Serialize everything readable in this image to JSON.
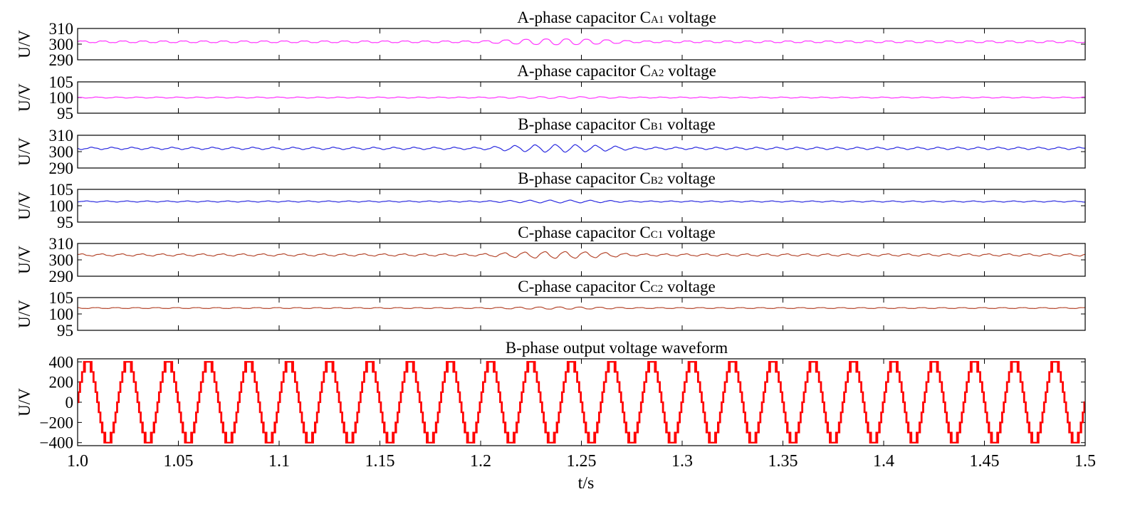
{
  "chart_data": {
    "type": "line",
    "x_label": "t/s",
    "xlim": [
      1.0,
      1.5
    ],
    "x_ticks": [
      "1.0",
      "1.05",
      "1.1",
      "1.15",
      "1.2",
      "1.25",
      "1.3",
      "1.35",
      "1.4",
      "1.45",
      "1.5"
    ],
    "panels": [
      {
        "title": "A-phase capacitor C",
        "subscript": "A1",
        "title_suffix": " voltage",
        "ylabel": "U/V",
        "ylim": [
          290,
          310
        ],
        "y_ticks": [
          "310",
          "300",
          "290"
        ],
        "color": "#ff33ff",
        "series": {
          "mean": 301.5,
          "ripple_v": 0.6,
          "ripple_freq_hz": 100,
          "event_start_s": 1.2,
          "event_end_s": 1.3,
          "event_ripple_v": 2.0
        }
      },
      {
        "title": "A-phase capacitor C",
        "subscript": "A2",
        "title_suffix": " voltage",
        "ylabel": "U/V",
        "ylim": [
          95,
          105
        ],
        "y_ticks": [
          "105",
          "100",
          "95"
        ],
        "color": "#ff33ff",
        "series": {
          "mean": 100.0,
          "ripple_v": 0.15,
          "ripple_freq_hz": 100,
          "event_start_s": 1.2,
          "event_end_s": 1.3,
          "event_ripple_v": 0.3
        }
      },
      {
        "title": "B-phase capacitor C",
        "subscript": "B1",
        "title_suffix": " voltage",
        "ylabel": "U/V",
        "ylim": [
          290,
          310
        ],
        "y_ticks": [
          "310",
          "300",
          "290"
        ],
        "color": "#2a2adf",
        "series": {
          "mean": 302.0,
          "ripple_v": 0.6,
          "ripple_freq_hz": 100,
          "event_start_s": 1.2,
          "event_end_s": 1.3,
          "event_ripple_v": 2.2
        }
      },
      {
        "title": "B-phase capacitor C",
        "subscript": "B2",
        "title_suffix": " voltage",
        "ylabel": "U/V",
        "ylim": [
          95,
          105
        ],
        "y_ticks": [
          "105",
          "100",
          "95"
        ],
        "color": "#2a2adf",
        "series": {
          "mean": 101.3,
          "ripple_v": 0.15,
          "ripple_freq_hz": 100,
          "event_start_s": 1.2,
          "event_end_s": 1.3,
          "event_ripple_v": 0.4
        }
      },
      {
        "title": "C-phase capacitor C",
        "subscript": "C1",
        "title_suffix": " voltage",
        "ylabel": "U/V",
        "ylim": [
          290,
          310
        ],
        "y_ticks": [
          "310",
          "300",
          "290"
        ],
        "color": "#b5482e",
        "series": {
          "mean": 303.0,
          "ripple_v": 0.6,
          "ripple_freq_hz": 100,
          "event_start_s": 1.2,
          "event_end_s": 1.3,
          "event_ripple_v": 2.0
        }
      },
      {
        "title": "C-phase capacitor C",
        "subscript": "C2",
        "title_suffix": " voltage",
        "ylabel": "U/V",
        "ylim": [
          95,
          105
        ],
        "y_ticks": [
          "105",
          "100",
          "95"
        ],
        "color": "#b5482e",
        "series": {
          "mean": 101.8,
          "ripple_v": 0.15,
          "ripple_freq_hz": 100,
          "event_start_s": 1.2,
          "event_end_s": 1.3,
          "event_ripple_v": 0.35
        }
      },
      {
        "title": "B-phase output voltage waveform",
        "subscript": "",
        "title_suffix": "",
        "ylabel": "U/V",
        "ylim": [
          -430,
          430
        ],
        "y_ticks": [
          "400",
          "200",
          "0",
          "−200",
          "−400"
        ],
        "color": "#ff0000",
        "series": {
          "type": "staircase_sine",
          "amplitude_v": 400,
          "frequency_hz": 50,
          "levels": 4,
          "step_v": 100
        }
      }
    ]
  }
}
